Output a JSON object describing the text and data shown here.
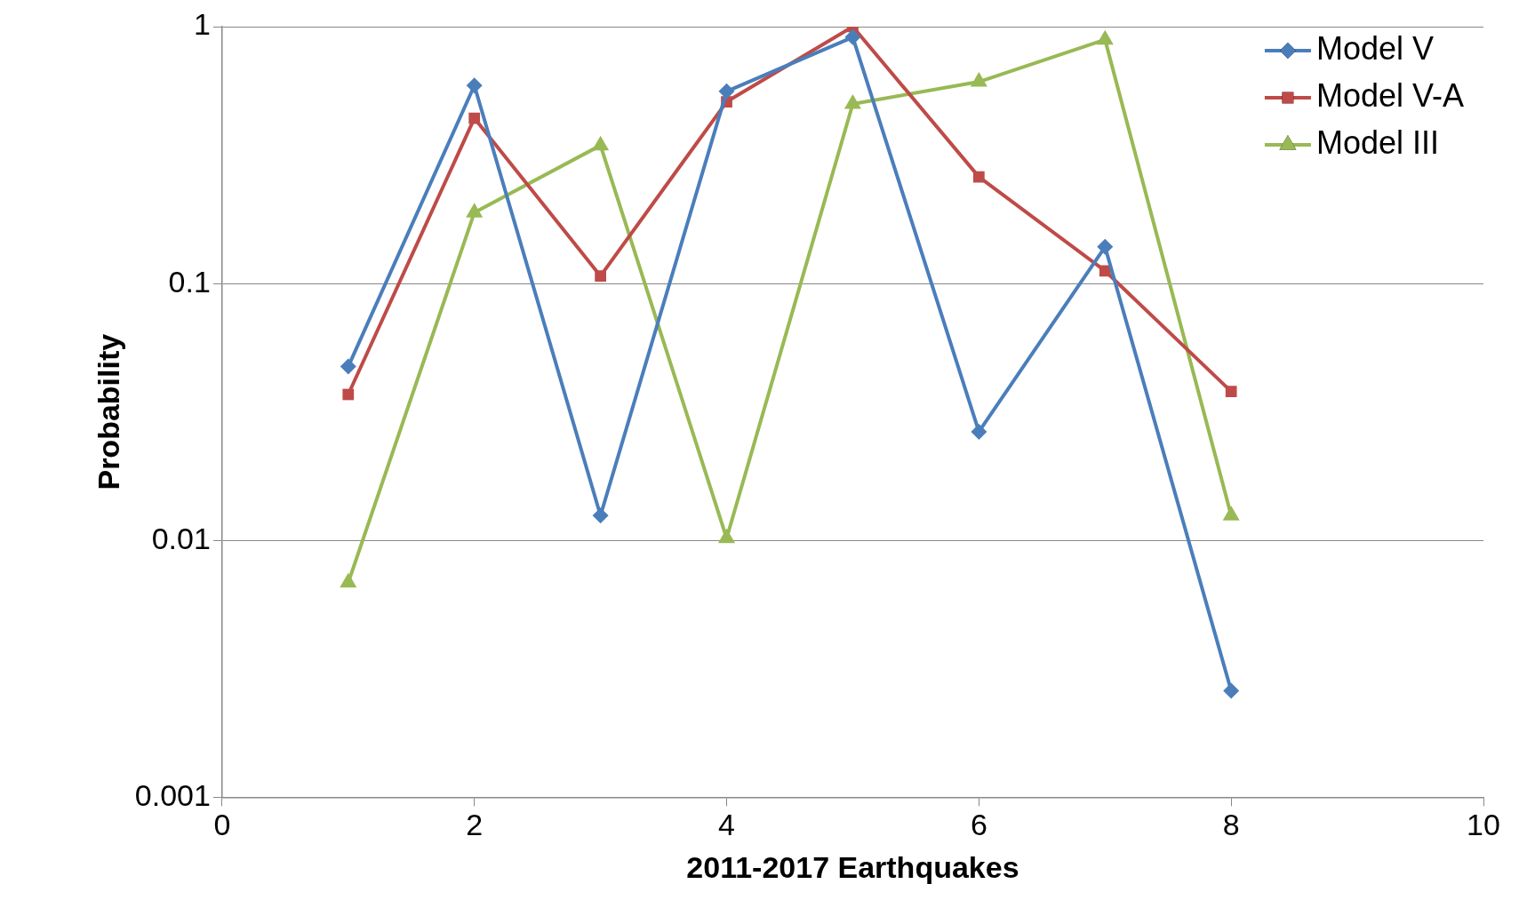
{
  "chart_data": {
    "type": "line",
    "xlabel": "2011-2017 Earthquakes",
    "ylabel": "Probability",
    "x": [
      1,
      2,
      3,
      4,
      5,
      6,
      7,
      8
    ],
    "series": [
      {
        "name": "Model V",
        "color": "#4a7ebb",
        "marker": "diamond",
        "values": [
          0.0475,
          0.59,
          0.0125,
          0.56,
          0.91,
          0.0265,
          0.139,
          0.0026
        ]
      },
      {
        "name": "Model V-A",
        "color": "#be4b48",
        "marker": "square",
        "values": [
          0.037,
          0.44,
          0.107,
          0.51,
          1.0,
          0.26,
          0.112,
          0.038
        ]
      },
      {
        "name": "Model III",
        "color": "#98b954",
        "marker": "triangle",
        "values": [
          0.00685,
          0.189,
          0.345,
          0.0102,
          0.5,
          0.61,
          0.89,
          0.0125
        ]
      }
    ],
    "xlim": [
      0,
      10
    ],
    "xticks": [
      0,
      2,
      4,
      6,
      8,
      10
    ],
    "ylim": [
      0.001,
      1
    ],
    "yticks": [
      0.001,
      0.01,
      0.1,
      1
    ],
    "log": "y",
    "grid": "y",
    "legend": "top right",
    "line_style": "solid"
  }
}
